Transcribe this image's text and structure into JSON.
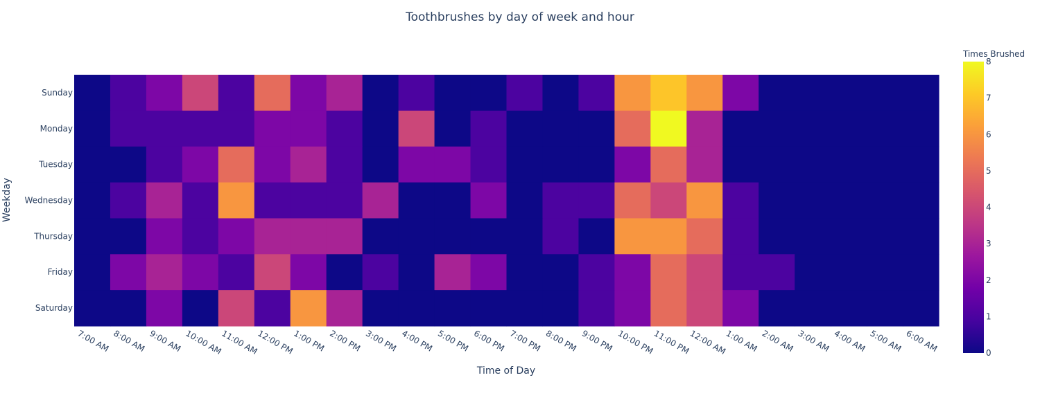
{
  "chart_data": {
    "type": "heatmap",
    "title": "Toothbrushes by day of week and hour",
    "xlabel": "Time of Day",
    "ylabel": "Weekday",
    "colorbar_title": "Times Brushed",
    "colorscale": "plasma",
    "colorscale_colors": [
      "#0d0887",
      "#46039f",
      "#7201a8",
      "#9c179e",
      "#bd3786",
      "#d8576b",
      "#ed7953",
      "#fb9f3a",
      "#fdca26",
      "#f0f921"
    ],
    "zlim": [
      0,
      8
    ],
    "colorbar_ticks": [
      0,
      1,
      2,
      3,
      4,
      5,
      6,
      7,
      8
    ],
    "x": [
      "7:00 AM",
      "8:00 AM",
      "9:00 AM",
      "10:00 AM",
      "11:00 AM",
      "12:00 PM",
      "1:00 PM",
      "2:00 PM",
      "3:00 PM",
      "4:00 PM",
      "5:00 PM",
      "6:00 PM",
      "7:00 PM",
      "8:00 PM",
      "9:00 PM",
      "10:00 PM",
      "11:00 PM",
      "12:00 AM",
      "1:00 AM",
      "2:00 AM",
      "3:00 AM",
      "4:00 AM",
      "5:00 AM",
      "6:00 AM"
    ],
    "y": [
      "Sunday",
      "Monday",
      "Tuesday",
      "Wednesday",
      "Thursday",
      "Friday",
      "Saturday"
    ],
    "z": [
      [
        0,
        1,
        2,
        4,
        1,
        5,
        2,
        3,
        0,
        1,
        0,
        0,
        1,
        0,
        1,
        6,
        7,
        6,
        2,
        0,
        0,
        0,
        0,
        0
      ],
      [
        0,
        1,
        1,
        1,
        1,
        2,
        2,
        1,
        0,
        4,
        0,
        1,
        0,
        0,
        0,
        5,
        8,
        3,
        0,
        0,
        0,
        0,
        0,
        0
      ],
      [
        0,
        0,
        1,
        2,
        5,
        2,
        3,
        1,
        0,
        2,
        2,
        1,
        0,
        0,
        0,
        2,
        5,
        3,
        0,
        0,
        0,
        0,
        0,
        0
      ],
      [
        0,
        1,
        3,
        1,
        6,
        1,
        1,
        1,
        3,
        0,
        0,
        2,
        0,
        1,
        1,
        5,
        4,
        6,
        1,
        0,
        0,
        0,
        0,
        0
      ],
      [
        0,
        0,
        2,
        1,
        2,
        3,
        3,
        3,
        0,
        0,
        0,
        0,
        0,
        1,
        0,
        6,
        6,
        5,
        1,
        0,
        0,
        0,
        0,
        0
      ],
      [
        0,
        2,
        3,
        2,
        1,
        4,
        2,
        0,
        1,
        0,
        3,
        2,
        0,
        0,
        1,
        2,
        5,
        4,
        1,
        1,
        0,
        0,
        0,
        0
      ],
      [
        0,
        0,
        2,
        0,
        4,
        1,
        6,
        3,
        0,
        0,
        0,
        0,
        0,
        0,
        1,
        2,
        5,
        4,
        2,
        0,
        0,
        0,
        0,
        0
      ]
    ]
  }
}
